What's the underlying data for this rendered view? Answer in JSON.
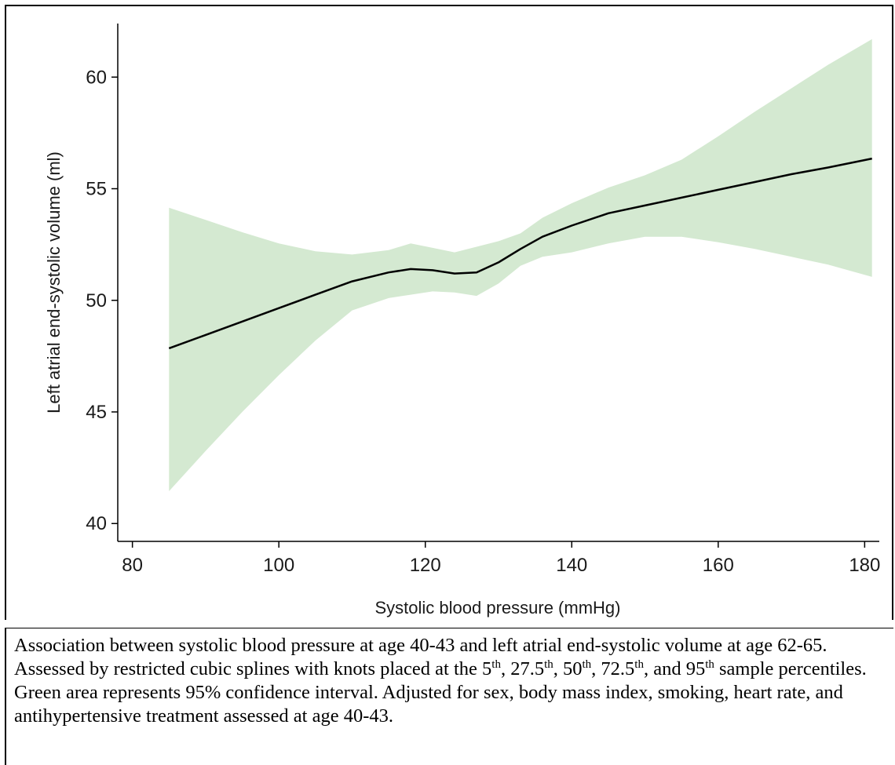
{
  "chart_data": {
    "type": "line",
    "title": "",
    "xlabel": "Systolic blood pressure (mmHg)",
    "ylabel": "Left atrial end-systolic volume (ml)",
    "xlim": [
      78,
      182
    ],
    "ylim": [
      39.2,
      62.4
    ],
    "x_ticks": [
      80,
      100,
      120,
      140,
      160,
      180
    ],
    "y_ticks": [
      40,
      45,
      50,
      55,
      60
    ],
    "grid": false,
    "legend": "none",
    "band_color": "#d4e9d1",
    "line_color": "#000000",
    "series": [
      {
        "x": [
          85,
          90,
          95,
          100,
          105,
          110,
          115,
          118,
          121,
          124,
          127,
          130,
          133,
          136,
          140,
          145,
          150,
          155,
          160,
          165,
          170,
          175,
          181
        ],
        "values": [
          47.85,
          48.45,
          49.05,
          49.65,
          50.25,
          50.85,
          51.25,
          51.4,
          51.35,
          51.2,
          51.25,
          51.7,
          52.3,
          52.85,
          53.35,
          53.9,
          54.25,
          54.6,
          54.95,
          55.3,
          55.65,
          55.95,
          56.35
        ],
        "ci_upper": [
          54.15,
          53.6,
          53.05,
          52.55,
          52.2,
          52.05,
          52.25,
          52.55,
          52.35,
          52.15,
          52.4,
          52.65,
          53.0,
          53.7,
          54.35,
          55.05,
          55.6,
          56.3,
          57.35,
          58.45,
          59.5,
          60.55,
          61.7
        ],
        "ci_lower": [
          41.45,
          43.25,
          45.0,
          46.65,
          48.2,
          49.55,
          50.1,
          50.25,
          50.4,
          50.35,
          50.2,
          50.75,
          51.55,
          51.95,
          52.15,
          52.55,
          52.85,
          52.85,
          52.6,
          52.3,
          51.95,
          51.6,
          51.05
        ]
      }
    ]
  },
  "caption": {
    "part1": "Association between systolic blood pressure at age 40-43 and left atrial end-systolic volume at age 62-65. Assessed by restricted cubic splines with knots placed at the 5",
    "sup1": "th",
    "part2": ", 27.5",
    "sup2": "th",
    "part3": ", 50",
    "sup3": "th",
    "part4": ", 72.5",
    "sup4": "th",
    "part5": ", and 95",
    "sup5": "th",
    "part6": " sample percentiles. Green area represents 95% confidence interval. Adjusted for sex, body mass index, smoking, heart rate, and antihypertensive treatment assessed at age 40-43."
  }
}
